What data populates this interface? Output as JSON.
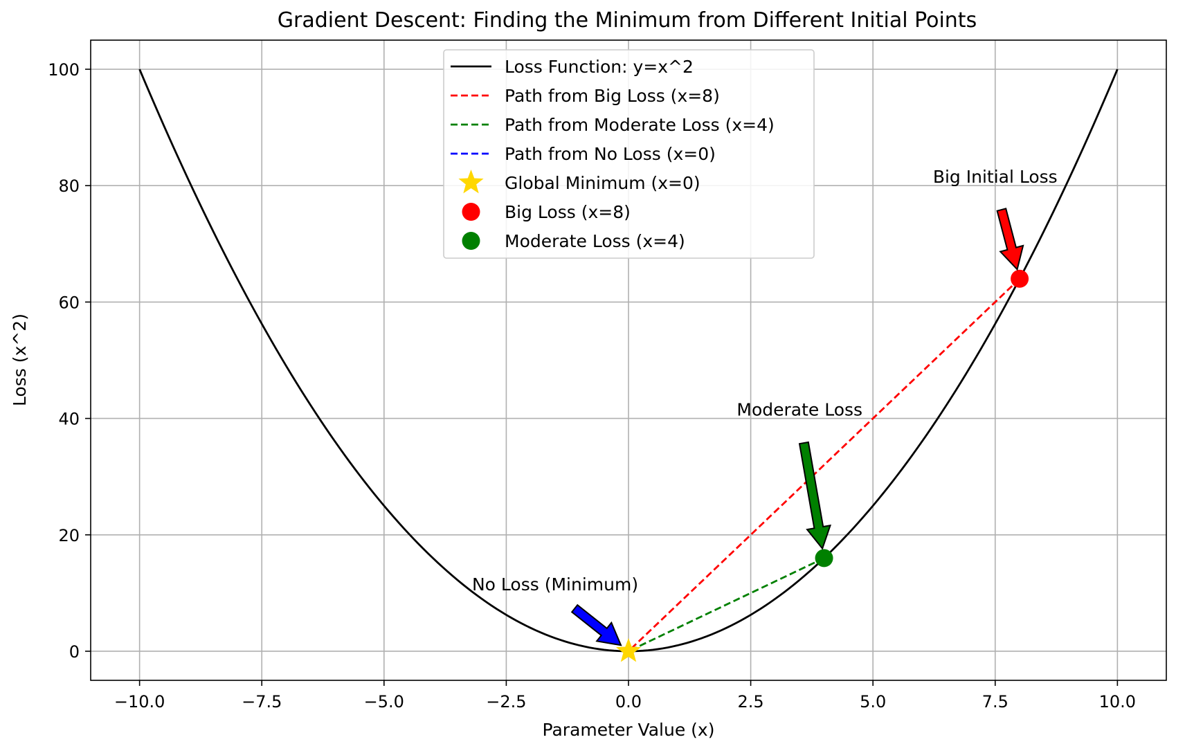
{
  "chart_data": {
    "type": "line",
    "title": "Gradient Descent: Finding the Minimum from Different Initial Points",
    "xlabel": "Parameter Value (x)",
    "ylabel": "Loss (x^2)",
    "xlim": [
      -11.0,
      11.0
    ],
    "ylim": [
      -5,
      105
    ],
    "xticks": [
      -10.0,
      -7.5,
      -5.0,
      -2.5,
      0.0,
      2.5,
      5.0,
      7.5,
      10.0
    ],
    "xtick_labels": [
      "−10.0",
      "−7.5",
      "−5.0",
      "−2.5",
      "0.0",
      "2.5",
      "5.0",
      "7.5",
      "10.0"
    ],
    "yticks": [
      0,
      20,
      40,
      60,
      80,
      100
    ],
    "ytick_labels": [
      "0",
      "20",
      "40",
      "60",
      "80",
      "100"
    ],
    "grid": true,
    "legend_position": "top-center",
    "curve": {
      "name": "Loss Function: y=x^2",
      "color": "#000000",
      "function": "x^2",
      "x_range": [
        -10,
        10
      ]
    },
    "paths": [
      {
        "name": "Path from Big Loss (x=8)",
        "color": "#ff0000",
        "points": [
          [
            8,
            64
          ],
          [
            0,
            0
          ]
        ]
      },
      {
        "name": "Path from Moderate Loss (x=4)",
        "color": "#008000",
        "points": [
          [
            4,
            16
          ],
          [
            0,
            0
          ]
        ]
      },
      {
        "name": "Path from No Loss (x=0)",
        "color": "#0000ff",
        "points": [
          [
            0,
            0
          ],
          [
            0,
            0
          ]
        ]
      }
    ],
    "markers": [
      {
        "name": "Global Minimum (x=0)",
        "shape": "star",
        "color": "#ffd700",
        "x": 0,
        "y": 0
      },
      {
        "name": "Big Loss (x=8)",
        "shape": "circle",
        "color": "#ff0000",
        "x": 8,
        "y": 64
      },
      {
        "name": "Moderate Loss (x=4)",
        "shape": "circle",
        "color": "#008000",
        "x": 4,
        "y": 16
      }
    ],
    "annotations": [
      {
        "text": "Big Initial Loss",
        "color": "#ff0000",
        "point": [
          8,
          64
        ],
        "text_at": [
          7.5,
          80
        ]
      },
      {
        "text": "Moderate Loss",
        "color": "#008000",
        "point": [
          4,
          16
        ],
        "text_at": [
          3.5,
          40
        ]
      },
      {
        "text": "No Loss (Minimum)",
        "color": "#0000ff",
        "point": [
          0,
          0
        ],
        "text_at": [
          -1.5,
          10
        ]
      }
    ]
  }
}
